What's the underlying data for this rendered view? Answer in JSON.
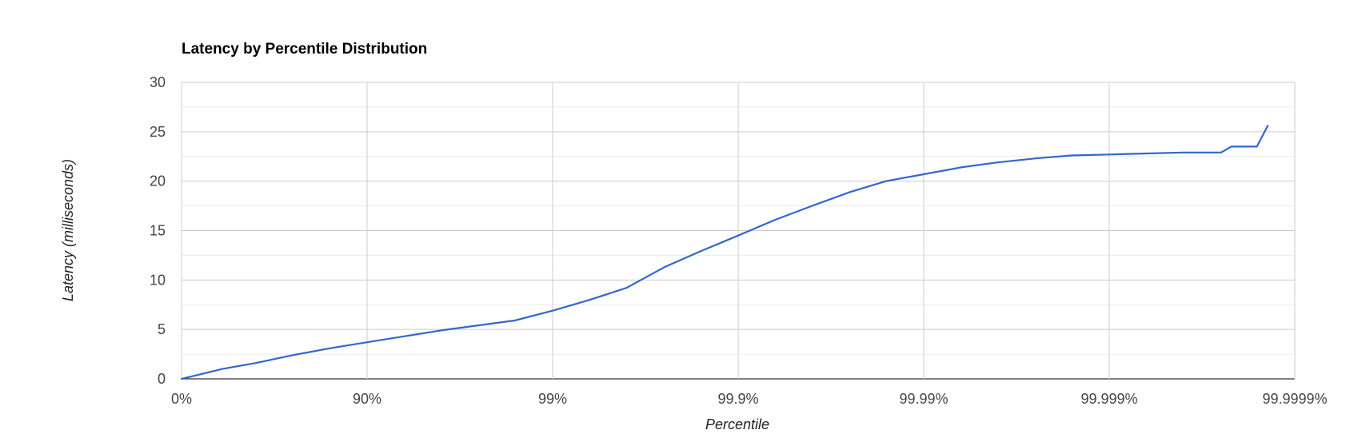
{
  "chart_data": {
    "type": "line",
    "title": "Latency by Percentile Distribution",
    "xlabel": "Percentile",
    "ylabel": "Latency (milliseconds)",
    "x_scale": "log-percentile",
    "x_ticks": [
      {
        "percentile": 0,
        "label": "0%"
      },
      {
        "percentile": 90,
        "label": "90%"
      },
      {
        "percentile": 99,
        "label": "99%"
      },
      {
        "percentile": 99.9,
        "label": "99.9%"
      },
      {
        "percentile": 99.99,
        "label": "99.99%"
      },
      {
        "percentile": 99.999,
        "label": "99.999%"
      },
      {
        "percentile": 99.9999,
        "label": "99.9999%"
      }
    ],
    "ylim": [
      0,
      30
    ],
    "y_ticks": [
      0,
      5,
      10,
      15,
      20,
      25,
      30
    ],
    "y_minor_gridlines": true,
    "grid": true,
    "legend": "none",
    "series": [
      {
        "color": "#3366cc",
        "x": [
          0,
          39.8,
          60.2,
          74.9,
          84.2,
          90,
          96.0,
          98.4,
          99.0,
          99.37,
          99.6,
          99.75,
          99.84,
          99.9,
          99.937,
          99.96,
          99.975,
          99.984,
          99.99,
          99.9937,
          99.996,
          99.9975,
          99.9984,
          99.999,
          99.99937,
          99.9996,
          99.99975,
          99.99978,
          99.99984,
          99.99986
        ],
        "y": [
          0,
          1.0,
          1.6,
          2.4,
          3.1,
          3.7,
          4.9,
          5.9,
          6.9,
          8.0,
          9.2,
          11.3,
          12.9,
          14.5,
          16.1,
          17.5,
          18.9,
          20.0,
          20.7,
          21.4,
          21.9,
          22.3,
          22.6,
          22.7,
          22.8,
          22.9,
          22.9,
          23.5,
          23.5,
          25.6
        ]
      }
    ]
  }
}
